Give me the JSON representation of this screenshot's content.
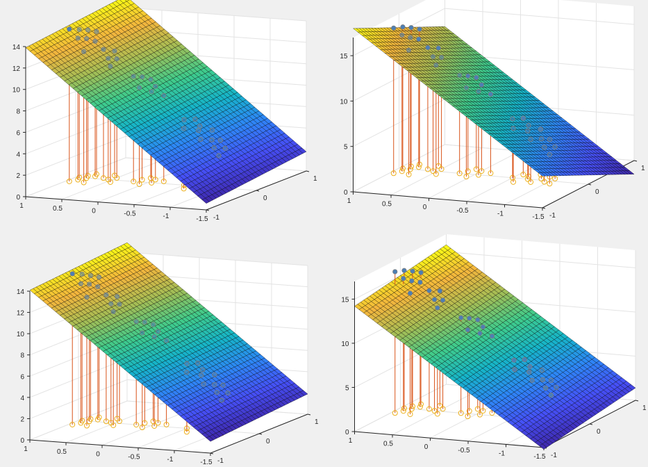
{
  "figure": {
    "background": "#f0f0f0",
    "axes_background": "#ffffff",
    "grid_color": "#e3e3e3",
    "box_color": "#262626",
    "stem_color": "#d95319",
    "marker_fill_color": "#4c7fb5",
    "base_marker_color": "#edb120",
    "colormap": [
      "#3e26a8",
      "#4650f7",
      "#2e87f7",
      "#16b5c9",
      "#3fcc8c",
      "#a4be56",
      "#f4b63d",
      "#f9fb15"
    ]
  },
  "chart_data": [
    {
      "type": "surface",
      "title": "",
      "xlabel": "",
      "ylabel": "",
      "zlabel": "",
      "xlim": [
        -1.5,
        1
      ],
      "ylim": [
        -1,
        1
      ],
      "zlim": [
        0,
        14
      ],
      "xticks": [
        "1",
        "0.5",
        "0",
        "-0.5",
        "-1",
        "-1.5"
      ],
      "yticks": [
        "-1",
        "0",
        "1"
      ],
      "zticks": [
        "0",
        "2",
        "4",
        "6",
        "8",
        "10",
        "12",
        "14"
      ],
      "grid": true,
      "plane": {
        "z_at_x_-1.5": 1.2,
        "z_at_x_1": 14.5,
        "slope_y": 0.6
      },
      "series": [
        {
          "type": "stem3",
          "x": [
            0.95,
            0.95,
            0.9,
            0.9,
            0.85,
            0.85,
            0.8,
            0.75,
            0.65,
            0.6,
            0.55,
            0.5,
            0.45,
            0.2,
            0.15,
            0.1,
            0.05,
            0.0,
            -0.05,
            -0.15,
            -0.5,
            -0.55,
            -0.6,
            -0.65,
            -0.7,
            -0.75,
            -0.8,
            -0.85,
            -0.9,
            -0.95,
            -1.0,
            -1.05
          ],
          "y": [
            -0.2,
            0.0,
            0.1,
            -0.1,
            0.2,
            0.0,
            0.1,
            -0.2,
            0.05,
            0.2,
            0.0,
            0.1,
            -0.1,
            0.0,
            0.1,
            0.2,
            -0.1,
            0.15,
            0.0,
            0.1,
            0.0,
            0.15,
            -0.15,
            0.1,
            0.0,
            0.2,
            -0.1,
            0.05,
            0.15,
            -0.05,
            0.1,
            -0.1
          ],
          "z": [
            14.2,
            13.8,
            13.6,
            13.2,
            13.3,
            13.0,
            12.6,
            12.2,
            12.0,
            11.6,
            11.3,
            11.1,
            10.8,
            9.8,
            9.6,
            9.2,
            9.0,
            8.7,
            8.5,
            8.0,
            6.1,
            5.9,
            5.6,
            5.4,
            5.2,
            4.9,
            4.6,
            4.3,
            4.1,
            3.8,
            3.5,
            3.2
          ]
        }
      ]
    },
    {
      "type": "surface",
      "title": "",
      "xlabel": "",
      "ylabel": "",
      "zlabel": "",
      "xlim": [
        -1.5,
        1
      ],
      "ylim": [
        -1,
        1
      ],
      "zlim": [
        0,
        17
      ],
      "xticks": [
        "1",
        "0.5",
        "0",
        "-0.5",
        "-1",
        "-1.5"
      ],
      "yticks": [
        "-1",
        "0",
        "1"
      ],
      "zticks": [
        "0",
        "5",
        "10",
        "15"
      ],
      "grid": true,
      "plane": {
        "z_at_x_-1.5": 1.0,
        "z_at_x_1": 15.5,
        "slope_y": -2.5
      },
      "series": [
        {
          "type": "stem3",
          "x": [
            0.95,
            0.95,
            0.9,
            0.9,
            0.85,
            0.85,
            0.8,
            0.75,
            0.65,
            0.6,
            0.55,
            0.5,
            0.45,
            0.2,
            0.15,
            0.1,
            0.05,
            0.0,
            -0.05,
            -0.15,
            -0.5,
            -0.55,
            -0.6,
            -0.65,
            -0.7,
            -0.75,
            -0.8,
            -0.85,
            -0.9,
            -0.95,
            -1.0,
            -1.05
          ],
          "y": [
            -0.2,
            0.0,
            0.1,
            -0.1,
            0.2,
            0.0,
            0.1,
            -0.2,
            0.05,
            0.2,
            0.0,
            0.1,
            -0.1,
            0.0,
            0.1,
            0.2,
            -0.1,
            0.15,
            0.0,
            0.1,
            0.0,
            0.15,
            -0.15,
            0.1,
            0.0,
            0.2,
            -0.1,
            0.05,
            0.15,
            -0.05,
            0.1,
            -0.1
          ],
          "z": [
            16.0,
            15.6,
            15.3,
            15.0,
            14.9,
            14.5,
            14.1,
            13.7,
            13.4,
            13.0,
            12.6,
            12.3,
            12.0,
            10.8,
            10.5,
            10.1,
            9.8,
            9.5,
            9.2,
            8.7,
            6.5,
            6.2,
            5.9,
            5.6,
            5.3,
            5.0,
            4.7,
            4.4,
            4.1,
            3.8,
            3.5,
            3.2
          ]
        }
      ]
    },
    {
      "type": "surface",
      "title": "",
      "xlabel": "",
      "ylabel": "",
      "zlabel": "",
      "xlim": [
        -1.5,
        1
      ],
      "ylim": [
        -1,
        1
      ],
      "zlim": [
        0,
        14
      ],
      "xticks": [
        "1",
        "0.5",
        "0",
        "-0.5",
        "-1",
        "-1.5"
      ],
      "yticks": [
        "-1",
        "0",
        "1"
      ],
      "zticks": [
        "0",
        "2",
        "4",
        "6",
        "8",
        "10",
        "12",
        "14"
      ],
      "grid": true,
      "plane": {
        "z_at_x_-1.5": 1.5,
        "z_at_x_1": 14.5,
        "slope_y": 0.4
      },
      "series": [
        {
          "type": "stem3",
          "x": [
            0.95,
            0.95,
            0.9,
            0.9,
            0.85,
            0.85,
            0.8,
            0.75,
            0.65,
            0.6,
            0.55,
            0.5,
            0.45,
            0.2,
            0.15,
            0.1,
            0.05,
            0.0,
            -0.05,
            -0.15,
            -0.5,
            -0.55,
            -0.6,
            -0.65,
            -0.7,
            -0.75,
            -0.8,
            -0.85,
            -0.9,
            -0.95,
            -1.0,
            -1.05
          ],
          "y": [
            -0.2,
            0.0,
            0.1,
            -0.1,
            0.2,
            0.0,
            0.1,
            -0.2,
            0.05,
            0.2,
            0.0,
            0.1,
            -0.1,
            0.0,
            0.1,
            0.2,
            -0.1,
            0.15,
            0.0,
            0.1,
            0.0,
            0.15,
            -0.15,
            0.1,
            0.0,
            0.2,
            -0.1,
            0.05,
            0.15,
            -0.05,
            0.1,
            -0.1
          ],
          "z": [
            14.2,
            13.8,
            13.5,
            13.1,
            13.2,
            12.9,
            12.5,
            12.1,
            11.9,
            11.5,
            11.2,
            11.0,
            10.7,
            9.7,
            9.5,
            9.1,
            8.9,
            8.6,
            8.4,
            7.9,
            6.1,
            5.9,
            5.6,
            5.4,
            5.1,
            4.8,
            4.5,
            4.2,
            4.0,
            3.7,
            3.4,
            3.1
          ]
        }
      ]
    },
    {
      "type": "surface",
      "title": "",
      "xlabel": "",
      "ylabel": "",
      "zlabel": "",
      "xlim": [
        -1.5,
        1
      ],
      "ylim": [
        -1,
        1
      ],
      "zlim": [
        0,
        17
      ],
      "xticks": [
        "1",
        "0.5",
        "0",
        "-0.5",
        "-1",
        "-1.5"
      ],
      "yticks": [
        "-1",
        "0",
        "1"
      ],
      "zticks": [
        "0",
        "5",
        "10",
        "15"
      ],
      "grid": true,
      "plane": {
        "z_at_x_-1.5": 0.6,
        "z_at_x_1": 15.0,
        "slope_y": 0.8
      },
      "series": [
        {
          "type": "stem3",
          "x": [
            0.95,
            0.95,
            0.9,
            0.9,
            0.85,
            0.85,
            0.8,
            0.75,
            0.65,
            0.6,
            0.55,
            0.5,
            0.45,
            0.2,
            0.15,
            0.1,
            0.05,
            0.0,
            -0.05,
            -0.15,
            -0.5,
            -0.55,
            -0.6,
            -0.65,
            -0.7,
            -0.75,
            -0.8,
            -0.85,
            -0.9,
            -0.95,
            -1.0,
            -1.05
          ],
          "y": [
            -0.2,
            0.0,
            0.1,
            -0.1,
            0.2,
            0.0,
            0.1,
            -0.2,
            0.05,
            0.2,
            0.0,
            0.1,
            -0.1,
            0.0,
            0.1,
            0.2,
            -0.1,
            0.15,
            0.0,
            0.1,
            0.0,
            0.15,
            -0.15,
            0.1,
            0.0,
            0.2,
            -0.1,
            0.05,
            0.15,
            -0.05,
            0.1,
            -0.1
          ],
          "z": [
            16.0,
            15.6,
            15.3,
            15.0,
            14.9,
            14.5,
            14.1,
            13.7,
            13.4,
            13.0,
            12.6,
            12.3,
            12.0,
            10.8,
            10.5,
            10.1,
            9.8,
            9.5,
            9.2,
            8.7,
            6.5,
            6.2,
            5.9,
            5.6,
            5.3,
            5.0,
            4.7,
            4.4,
            4.1,
            3.8,
            3.5,
            3.2
          ]
        }
      ]
    }
  ]
}
